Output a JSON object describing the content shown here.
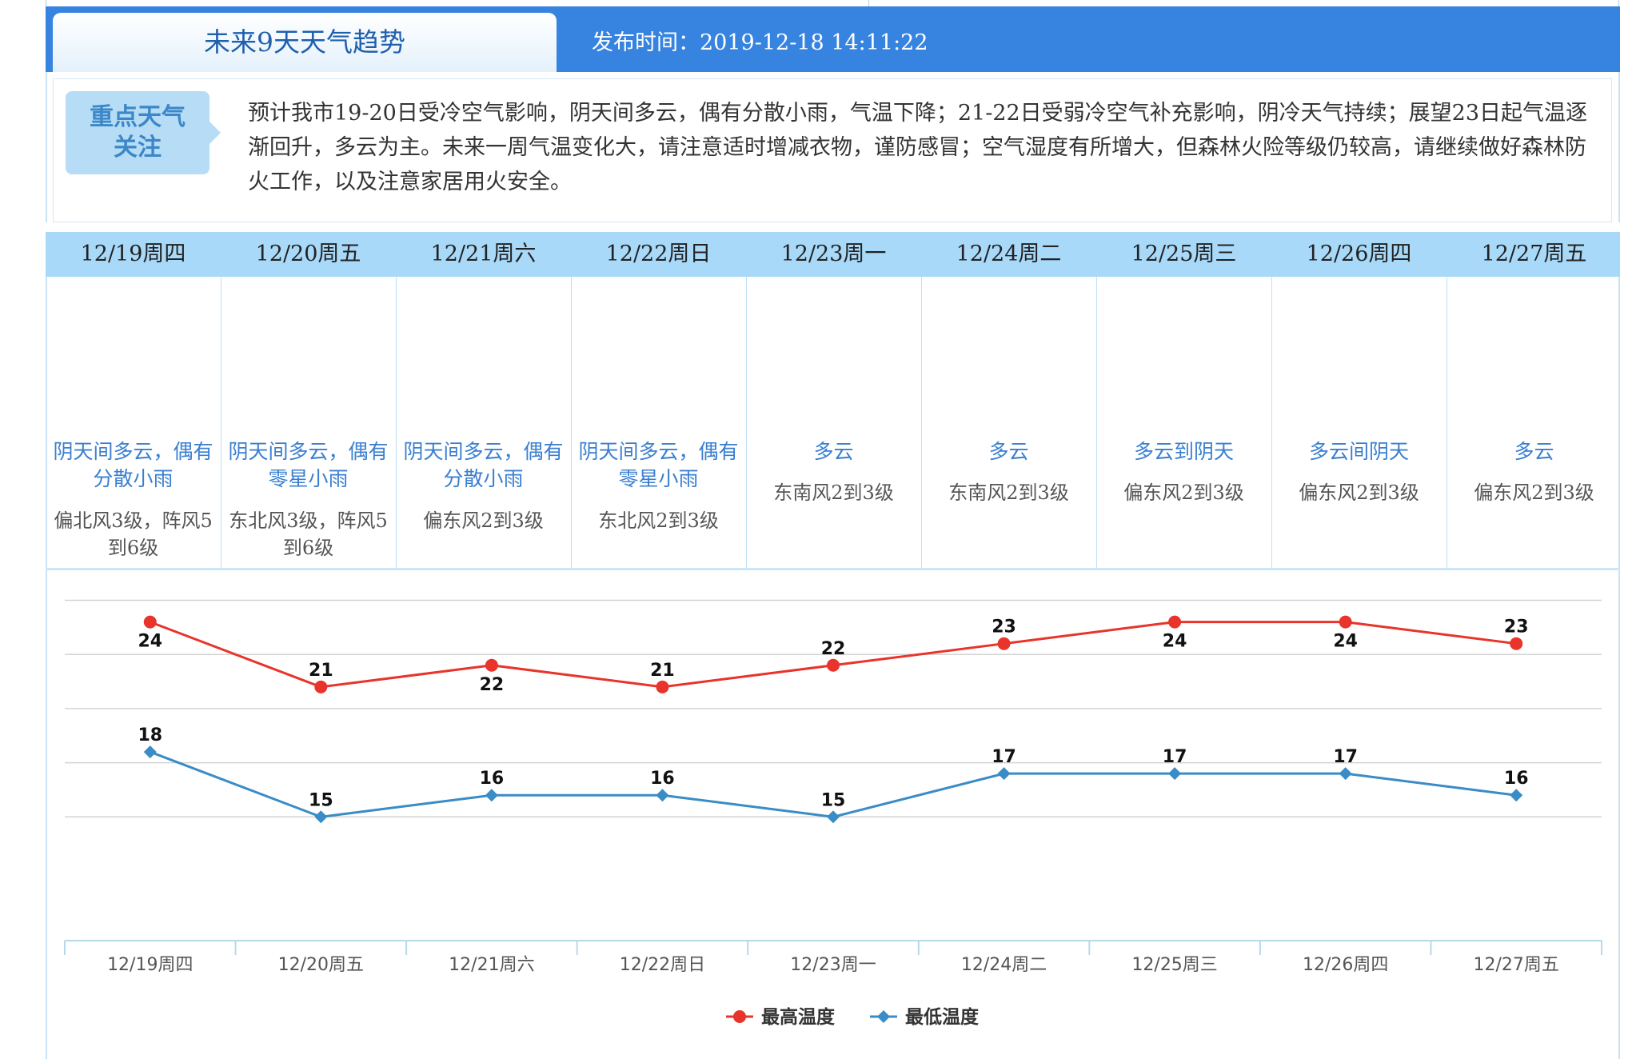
{
  "header": {
    "tab_title": "未来9天天气趋势",
    "publish_label": "发布时间：2019-12-18 14:11:22"
  },
  "notice": {
    "badge_line1": "重点天气",
    "badge_line2": "关注",
    "text": "预计我市19-20日受冷空气影响，阴天间多云，偶有分散小雨，气温下降；21-22日受弱冷空气补充影响，阴冷天气持续；展望23日起气温逐渐回升，多云为主。未来一周气温变化大，请注意适时增减衣物，谨防感冒；空气湿度有所增大，但森林火险等级仍较高，请继续做好森林防火工作，以及注意家居用火安全。"
  },
  "days": [
    {
      "date": "12/19周四",
      "desc": "阴天间多云，偶有分散小雨",
      "wind": "偏北风3级，阵风5到6级"
    },
    {
      "date": "12/20周五",
      "desc": "阴天间多云，偶有零星小雨",
      "wind": "东北风3级，阵风5到6级"
    },
    {
      "date": "12/21周六",
      "desc": "阴天间多云，偶有分散小雨",
      "wind": "偏东风2到3级"
    },
    {
      "date": "12/22周日",
      "desc": "阴天间多云，偶有零星小雨",
      "wind": "东北风2到3级"
    },
    {
      "date": "12/23周一",
      "desc": "多云",
      "wind": "东南风2到3级"
    },
    {
      "date": "12/24周二",
      "desc": "多云",
      "wind": "东南风2到3级"
    },
    {
      "date": "12/25周三",
      "desc": "多云到阴天",
      "wind": "偏东风2到3级"
    },
    {
      "date": "12/26周四",
      "desc": "多云间阴天",
      "wind": "偏东风2到3级"
    },
    {
      "date": "12/27周五",
      "desc": "多云",
      "wind": "偏东风2到3级"
    }
  ],
  "colors": {
    "high": "#e8342a",
    "low": "#3a8cc6",
    "header": "#3783e0",
    "daybar": "#a9d9f8"
  },
  "chart_data": {
    "type": "line",
    "categories": [
      "12/19周四",
      "12/20周五",
      "12/21周六",
      "12/22周日",
      "12/23周一",
      "12/24周二",
      "12/25周三",
      "12/26周四",
      "12/27周五"
    ],
    "series": [
      {
        "name": "最高温度",
        "values": [
          24,
          21,
          22,
          21,
          22,
          23,
          24,
          24,
          23
        ]
      },
      {
        "name": "最低温度",
        "values": [
          18,
          15,
          16,
          16,
          15,
          17,
          17,
          17,
          16
        ]
      }
    ],
    "title": "",
    "xlabel": "",
    "ylabel": "",
    "ylim": [
      12.5,
      25.5
    ],
    "grid": true,
    "legend": "bottom-center"
  }
}
